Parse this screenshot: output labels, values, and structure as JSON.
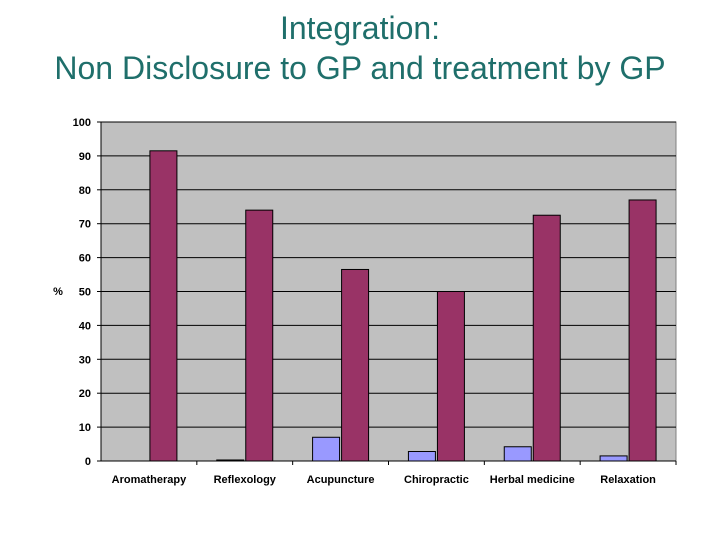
{
  "header": {
    "title_line1": "Integration:",
    "title_line2": "Non Disclosure to GP and treatment by GP"
  },
  "colors": {
    "title": "#1f6f6b",
    "plot_bg": "#c0c0c0",
    "series_gp_treatment": "#9999ff",
    "series_non_disclosure": "#993366"
  },
  "chart_data": {
    "type": "bar",
    "title": "",
    "xlabel": "",
    "ylabel": "%",
    "ylim": [
      0,
      100
    ],
    "yticks": [
      0,
      10,
      20,
      30,
      40,
      50,
      60,
      70,
      80,
      90,
      100
    ],
    "grid": true,
    "legend": "none",
    "categories": [
      "Aromatherapy",
      "Reflexology",
      "Acupuncture",
      "Chiropractic",
      "Herbal medicine",
      "Relaxation"
    ],
    "series": [
      {
        "values": [
          0,
          0.3,
          7,
          2.8,
          4.2,
          1.5
        ],
        "color": "#9999ff"
      },
      {
        "values": [
          91.5,
          74,
          56.5,
          50,
          72.5,
          77
        ],
        "color": "#993366"
      }
    ]
  }
}
